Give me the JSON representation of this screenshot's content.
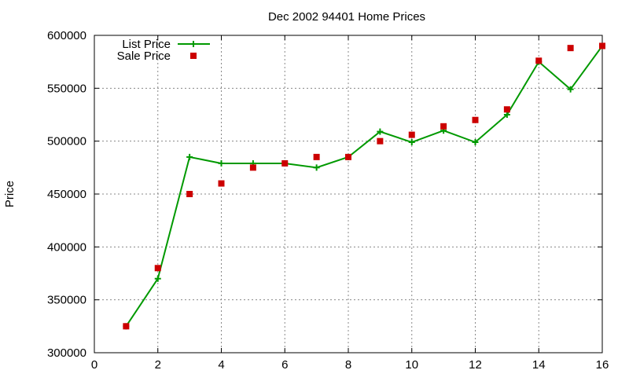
{
  "chart_data": {
    "type": "line",
    "title": "Dec 2002 94401 Home Prices",
    "xlabel": "",
    "ylabel": "Price",
    "xlim": [
      0,
      16
    ],
    "ylim": [
      300000,
      600000
    ],
    "x_ticks": [
      0,
      2,
      4,
      6,
      8,
      10,
      12,
      14,
      16
    ],
    "y_ticks": [
      300000,
      350000,
      400000,
      450000,
      500000,
      550000,
      600000
    ],
    "grid": true,
    "legend_position": "top-left",
    "series": [
      {
        "name": "List Price",
        "style": "line-with-plus-markers",
        "color": "#009900",
        "x": [
          1,
          2,
          3,
          4,
          5,
          6,
          7,
          8,
          9,
          10,
          11,
          12,
          13,
          14,
          15,
          16
        ],
        "y": [
          325000,
          370000,
          485000,
          479000,
          479000,
          479000,
          475000,
          485000,
          509000,
          499000,
          510000,
          499000,
          525000,
          575000,
          549000,
          590000
        ]
      },
      {
        "name": "Sale Price",
        "style": "square-points",
        "color": "#cc0000",
        "x": [
          1,
          2,
          3,
          4,
          5,
          6,
          7,
          8,
          9,
          10,
          11,
          12,
          13,
          14,
          15,
          16
        ],
        "y": [
          325000,
          380000,
          450000,
          460000,
          475000,
          479000,
          485000,
          485000,
          500000,
          506000,
          514000,
          520000,
          530000,
          576000,
          588000,
          590000
        ]
      }
    ]
  }
}
